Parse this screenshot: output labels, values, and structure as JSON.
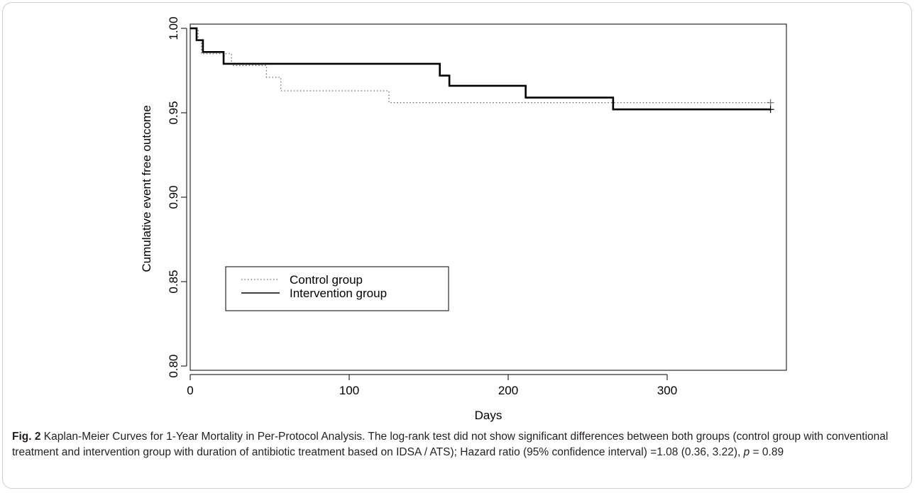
{
  "chart_data": {
    "type": "line",
    "xlabel": "Days",
    "ylabel": "Cumulative event free outcome",
    "xlim": [
      0,
      375
    ],
    "ylim": [
      0.7975,
      1.0025
    ],
    "x_ticks": [
      0,
      100,
      200,
      300
    ],
    "x_tick_labels": [
      "0",
      "100",
      "200",
      "300"
    ],
    "y_ticks": [
      0.8,
      0.85,
      0.9,
      0.95,
      1.0
    ],
    "y_tick_labels": [
      "0.80",
      "0.85",
      "0.90",
      "0.95",
      "1.00"
    ],
    "legend_position": "bottom-left",
    "step": true,
    "series": [
      {
        "name": "Control group",
        "line_style": "dotted",
        "color": "#6b6b6b",
        "x": [
          0,
          5,
          7,
          26,
          48,
          57,
          125,
          365
        ],
        "y": [
          1.0,
          0.993,
          0.985,
          0.978,
          0.971,
          0.963,
          0.956,
          0.956
        ],
        "censored": [
          [
            365,
            0.956
          ]
        ]
      },
      {
        "name": "Intervention group",
        "line_style": "solid",
        "color": "#000000",
        "x": [
          0,
          4,
          8,
          21,
          157,
          163,
          211,
          266,
          365
        ],
        "y": [
          1.0,
          0.993,
          0.986,
          0.979,
          0.972,
          0.966,
          0.959,
          0.952,
          0.952
        ],
        "censored": [
          [
            365,
            0.952
          ]
        ]
      }
    ]
  },
  "caption": {
    "fig_label": "Fig. 2",
    "part1": " Kaplan-Meier Curves for 1-Year Mortality in Per-Protocol Analysis. The log-rank test did not show significant differences between both groups (control group with conventional treatment and intervention group with duration of antibiotic treatment based on IDSA / ATS); Hazard ratio (95% confidence interval) =1.08 (0.36, 3.22), ",
    "p_symbol": "p",
    "part2": " = 0.89"
  },
  "colors": {
    "axis": "#000000",
    "caption_text": "#231f20",
    "frame": "#cfcfcf"
  }
}
